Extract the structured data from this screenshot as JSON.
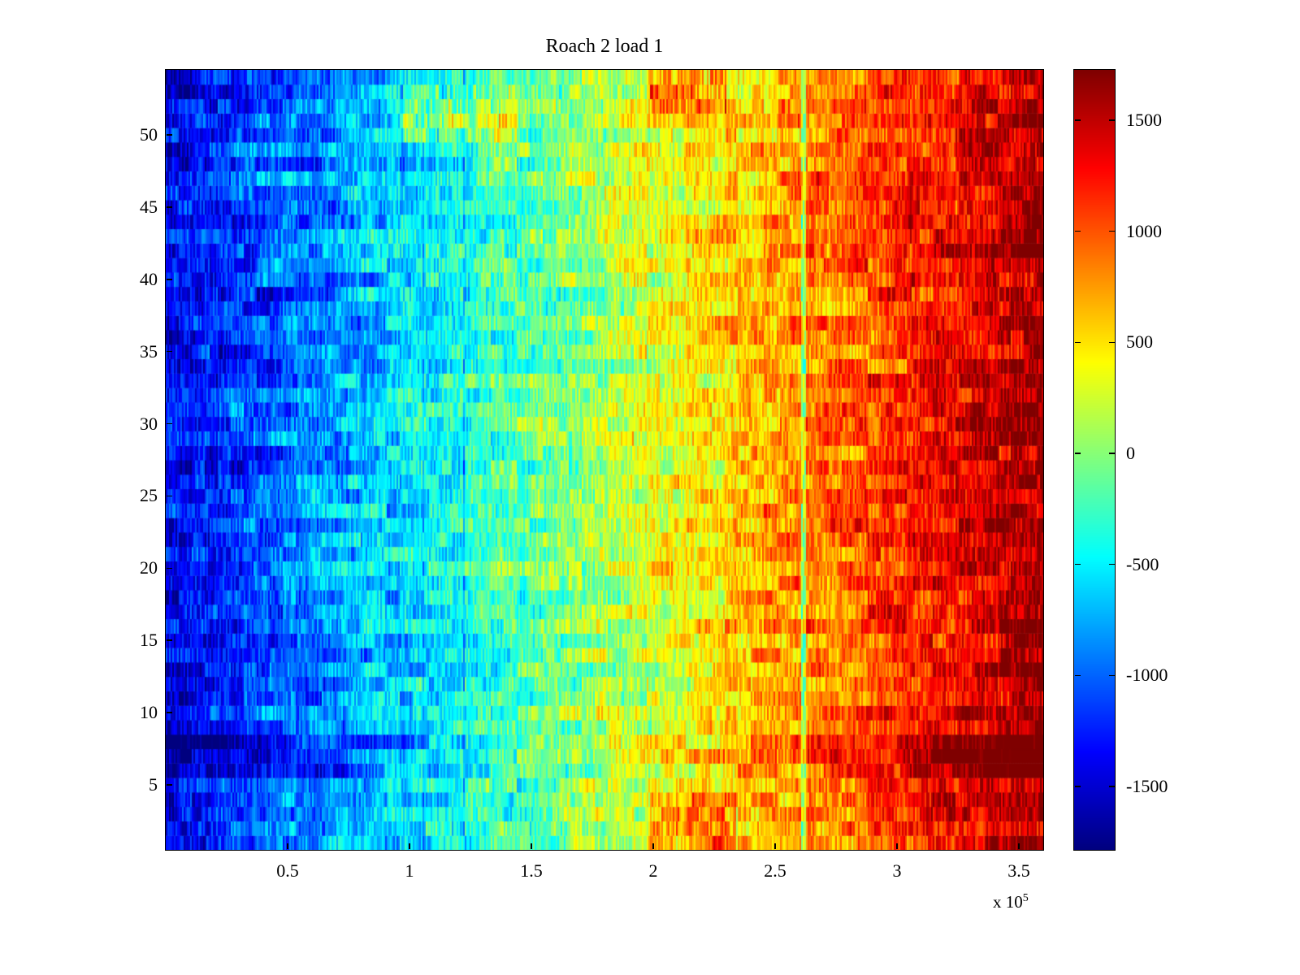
{
  "chart_data": {
    "type": "heatmap",
    "title": "Roach 2 load 1",
    "colormap": "jet",
    "x_range": [
      0,
      360000
    ],
    "x_ticks": [
      50000,
      100000,
      150000,
      200000,
      250000,
      300000,
      350000
    ],
    "x_tick_labels": [
      "0.5",
      "1",
      "1.5",
      "2",
      "2.5",
      "3",
      "3.5"
    ],
    "x_exponent_prefix": "x 10",
    "x_exponent": "5",
    "y_range": [
      0.5,
      54.5
    ],
    "rows": 54,
    "y_ticks": [
      5,
      10,
      15,
      20,
      25,
      30,
      35,
      40,
      45,
      50
    ],
    "y_tick_labels": [
      "5",
      "10",
      "15",
      "20",
      "25",
      "30",
      "35",
      "40",
      "45",
      "50"
    ],
    "color_range": [
      -1785,
      1727
    ],
    "colorbar_ticks": [
      -1500,
      -1000,
      -500,
      0,
      500,
      1000,
      1500
    ],
    "colorbar_tick_labels": [
      "-1500",
      "-1000",
      "-500",
      "0",
      "500",
      "1000",
      "1500"
    ],
    "legend": "none",
    "grid": false,
    "pattern": {
      "description": "noisy left-to-right ramp from deep blue (~-1400) to red (~1500); dark amplified band at rows 6-8; cyan vertical dropout near x=2.62e5; dark vertical streaks near x=1.1e5-1.2e5; warm patches near top and bottom rows around x=1.1e5 and x=2.1e5",
      "columns": 540,
      "seed": 7,
      "base_left": -1380,
      "base_right": 1620,
      "noise_fine": 280,
      "noise_block8": 220,
      "noise_block32": 170,
      "row_offset_amp": 90,
      "band_rows": [
        6,
        7,
        8
      ],
      "band_gain": 1.32,
      "warm_patches": [
        {
          "rows": [
            50,
            53
          ],
          "fx": [
            0.27,
            0.4
          ],
          "add": 400
        },
        {
          "rows": [
            52,
            54
          ],
          "fx": [
            0.55,
            0.64
          ],
          "add": 500
        },
        {
          "rows": [
            1,
            4
          ],
          "fx": [
            0.55,
            0.65
          ],
          "add": 420
        }
      ],
      "stripes": [
        {
          "fx": 0.728,
          "width": 2,
          "add": -950
        },
        {
          "fx": 0.34,
          "width": 1,
          "add": -420
        },
        {
          "fx": 0.293,
          "width": 1,
          "add": -300
        }
      ]
    }
  }
}
